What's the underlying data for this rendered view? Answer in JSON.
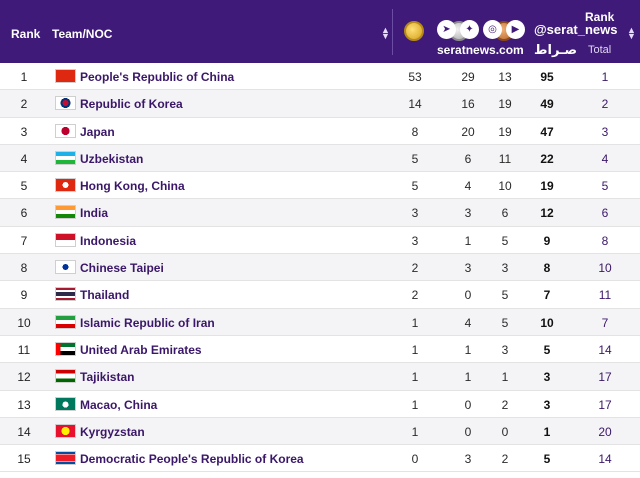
{
  "header": {
    "rank": "Rank",
    "team": "Team/NOC",
    "rank_by_total_line1": "Rank",
    "rank_by_total_line2": "Total"
  },
  "watermark": {
    "handle": "@serat_news",
    "site": "seratnews.com",
    "brand": "صـراط نیـــوز",
    "icons": [
      "telegram-icon",
      "twitter-icon",
      "instagram-icon",
      "youtube-icon"
    ]
  },
  "colors": {
    "header_bg": "#3f1a78",
    "team_text": "#3a1768",
    "alt_row": "#f4f4f6"
  },
  "rows": [
    {
      "rank": "1",
      "team": "People's Republic of China",
      "gold": "53",
      "silver": "29",
      "bronze": "13",
      "total": "95",
      "rank_total": "1",
      "flag": "china-flag-icon"
    },
    {
      "rank": "2",
      "team": "Republic of Korea",
      "gold": "14",
      "silver": "16",
      "bronze": "19",
      "total": "49",
      "rank_total": "2",
      "flag": "korea-flag-icon"
    },
    {
      "rank": "3",
      "team": "Japan",
      "gold": "8",
      "silver": "20",
      "bronze": "19",
      "total": "47",
      "rank_total": "3",
      "flag": "japan-flag-icon"
    },
    {
      "rank": "4",
      "team": "Uzbekistan",
      "gold": "5",
      "silver": "6",
      "bronze": "11",
      "total": "22",
      "rank_total": "4",
      "flag": "uzbekistan-flag-icon"
    },
    {
      "rank": "5",
      "team": "Hong Kong, China",
      "gold": "5",
      "silver": "4",
      "bronze": "10",
      "total": "19",
      "rank_total": "5",
      "flag": "hong-kong-flag-icon"
    },
    {
      "rank": "6",
      "team": "India",
      "gold": "3",
      "silver": "3",
      "bronze": "6",
      "total": "12",
      "rank_total": "6",
      "flag": "india-flag-icon"
    },
    {
      "rank": "7",
      "team": "Indonesia",
      "gold": "3",
      "silver": "1",
      "bronze": "5",
      "total": "9",
      "rank_total": "8",
      "flag": "indonesia-flag-icon"
    },
    {
      "rank": "8",
      "team": "Chinese Taipei",
      "gold": "2",
      "silver": "3",
      "bronze": "3",
      "total": "8",
      "rank_total": "10",
      "flag": "chinese-taipei-flag-icon"
    },
    {
      "rank": "9",
      "team": "Thailand",
      "gold": "2",
      "silver": "0",
      "bronze": "5",
      "total": "7",
      "rank_total": "11",
      "flag": "thailand-flag-icon"
    },
    {
      "rank": "10",
      "team": "Islamic Republic of Iran",
      "gold": "1",
      "silver": "4",
      "bronze": "5",
      "total": "10",
      "rank_total": "7",
      "flag": "iran-flag-icon"
    },
    {
      "rank": "11",
      "team": "United Arab Emirates",
      "gold": "1",
      "silver": "1",
      "bronze": "3",
      "total": "5",
      "rank_total": "14",
      "flag": "uae-flag-icon"
    },
    {
      "rank": "12",
      "team": "Tajikistan",
      "gold": "1",
      "silver": "1",
      "bronze": "1",
      "total": "3",
      "rank_total": "17",
      "flag": "tajikistan-flag-icon"
    },
    {
      "rank": "13",
      "team": "Macao, China",
      "gold": "1",
      "silver": "0",
      "bronze": "2",
      "total": "3",
      "rank_total": "17",
      "flag": "macao-flag-icon"
    },
    {
      "rank": "14",
      "team": "Kyrgyzstan",
      "gold": "1",
      "silver": "0",
      "bronze": "0",
      "total": "1",
      "rank_total": "20",
      "flag": "kyrgyzstan-flag-icon"
    },
    {
      "rank": "15",
      "team": "Democratic People's Republic of Korea",
      "gold": "0",
      "silver": "3",
      "bronze": "2",
      "total": "5",
      "rank_total": "14",
      "flag": "dprk-flag-icon"
    }
  ]
}
